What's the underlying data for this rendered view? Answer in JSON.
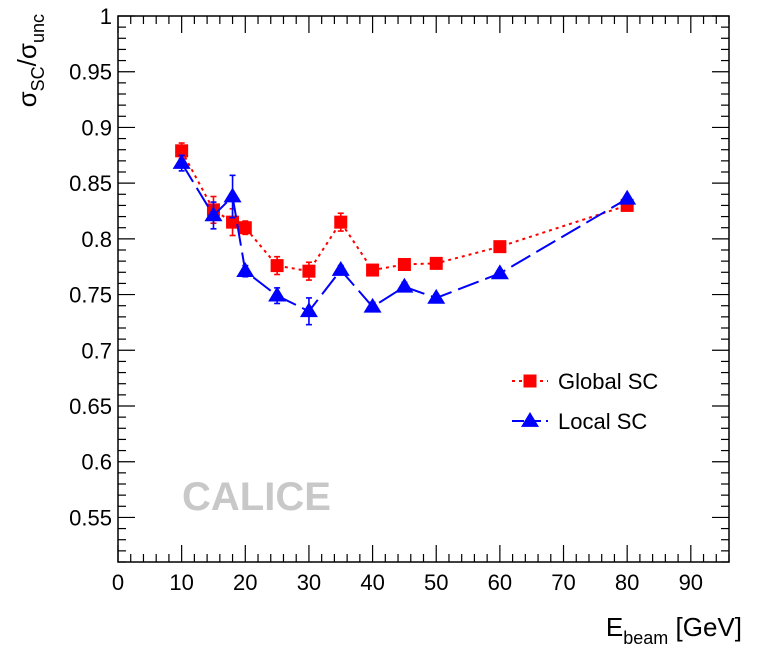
{
  "chart_data": {
    "type": "line",
    "xlabel": {
      "main": "E",
      "sub": "beam",
      "unit": " [GeV]"
    },
    "ylabel": {
      "sigma1": "σ",
      "sub1": "SC",
      "slash": "/",
      "sigma2": "σ",
      "sub2": "unc"
    },
    "xlim": [
      0,
      96
    ],
    "ylim": [
      0.51,
      1.0
    ],
    "x_ticks": [
      0,
      10,
      20,
      30,
      40,
      50,
      60,
      70,
      80,
      90
    ],
    "x_tick_labels": [
      "0",
      "10",
      "20",
      "30",
      "40",
      "50",
      "60",
      "70",
      "80",
      "90"
    ],
    "y_ticks": [
      0.55,
      0.6,
      0.65,
      0.7,
      0.75,
      0.8,
      0.85,
      0.9,
      0.95,
      1.0
    ],
    "y_tick_labels": [
      "0.55",
      "0.6",
      "0.65",
      "0.7",
      "0.75",
      "0.8",
      "0.85",
      "0.9",
      "0.95",
      "1"
    ],
    "grid": false,
    "legend_position": "right",
    "series": [
      {
        "name": "Global SC",
        "color": "#ff0000",
        "marker": "square",
        "line": "dotted",
        "x": [
          10,
          15,
          18,
          20,
          25,
          30,
          35,
          40,
          45,
          50,
          60,
          80
        ],
        "y": [
          0.879,
          0.826,
          0.815,
          0.81,
          0.776,
          0.771,
          0.815,
          0.772,
          0.777,
          0.778,
          0.793,
          0.83
        ],
        "err": [
          0.007,
          0.012,
          0.012,
          0.006,
          0.008,
          0.008,
          0.008,
          0.004,
          0.005,
          0.004,
          0.003,
          0.003
        ]
      },
      {
        "name": "Local SC",
        "color": "#0000ff",
        "marker": "triangle",
        "line": "dashed",
        "x": [
          10,
          15,
          18,
          20,
          25,
          30,
          35,
          40,
          45,
          50,
          60,
          80
        ],
        "y": [
          0.868,
          0.821,
          0.838,
          0.771,
          0.749,
          0.735,
          0.772,
          0.739,
          0.757,
          0.747,
          0.769,
          0.836
        ],
        "err": [
          0.007,
          0.012,
          0.019,
          0.005,
          0.007,
          0.012,
          0.004,
          0.004,
          0.004,
          0.003,
          0.003,
          0.003
        ]
      }
    ],
    "annotation": {
      "text": "CALICE",
      "color": "#c8c8c8"
    }
  }
}
